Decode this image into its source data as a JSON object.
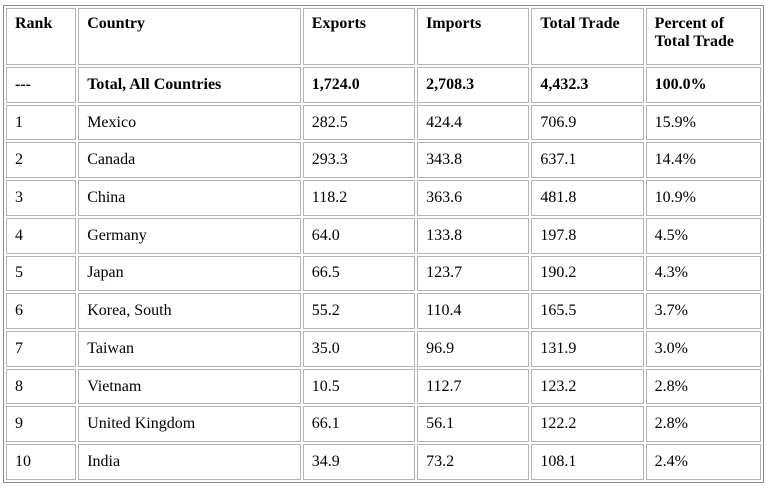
{
  "table": {
    "headers": [
      "Rank",
      "Country",
      "Exports",
      "Imports",
      "Total Trade",
      "Percent of Total Trade"
    ],
    "total_row": [
      "---",
      "Total, All Countries",
      "1,724.0",
      "2,708.3",
      "4,432.3",
      "100.0%"
    ],
    "rows": [
      [
        "1",
        "Mexico",
        "282.5",
        "424.4",
        "706.9",
        "15.9%"
      ],
      [
        "2",
        "Canada",
        "293.3",
        "343.8",
        "637.1",
        "14.4%"
      ],
      [
        "3",
        "China",
        "118.2",
        "363.6",
        "481.8",
        "10.9%"
      ],
      [
        "4",
        "Germany",
        "64.0",
        "133.8",
        "197.8",
        "4.5%"
      ],
      [
        "5",
        "Japan",
        "66.5",
        "123.7",
        "190.2",
        "4.3%"
      ],
      [
        "6",
        "Korea, South",
        "55.2",
        "110.4",
        "165.5",
        "3.7%"
      ],
      [
        "7",
        "Taiwan",
        "35.0",
        "96.9",
        "131.9",
        "3.0%"
      ],
      [
        "8",
        "Vietnam",
        "10.5",
        "112.7",
        "123.2",
        "2.8%"
      ],
      [
        "9",
        "United Kingdom",
        "66.1",
        "56.1",
        "122.2",
        "2.8%"
      ],
      [
        "10",
        "India",
        "34.9",
        "73.2",
        "108.1",
        "2.4%"
      ]
    ]
  }
}
